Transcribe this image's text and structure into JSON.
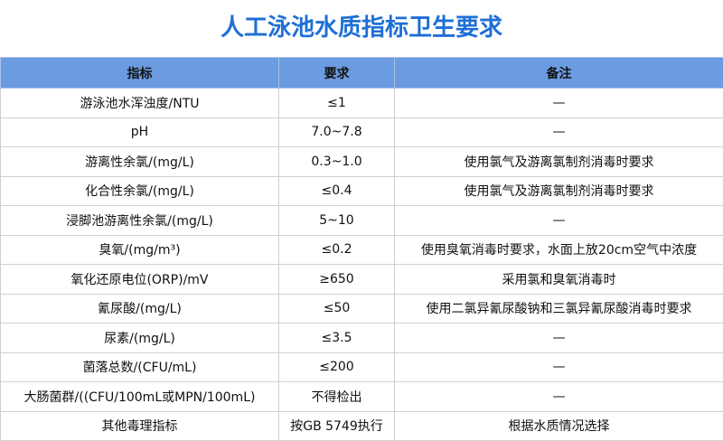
{
  "header": {
    "title": "人工泳池水质指标卫生要求"
  },
  "table": {
    "columns": [
      "指标",
      "要求",
      "备注"
    ],
    "rows": [
      [
        "游泳池水浑浊度/NTU",
        "≤1",
        "—"
      ],
      [
        "pH",
        "7.0~7.8",
        "—"
      ],
      [
        "游离性余氯/(mg/L)",
        "0.3~1.0",
        "使用氯气及游离氯制剂消毒时要求"
      ],
      [
        "化合性余氯/(mg/L)",
        "≤0.4",
        "使用氯气及游离氯制剂消毒时要求"
      ],
      [
        "浸脚池游离性余氯/(mg/L)",
        "5~10",
        "—"
      ],
      [
        "臭氧/(mg/m³)",
        "≤0.2",
        "使用臭氧消毒时要求，水面上放20cm空气中浓度"
      ],
      [
        "氧化还原电位(ORP)/mV",
        "≥650",
        "采用氯和臭氧消毒时"
      ],
      [
        "氰尿酸/(mg/L)",
        "≤50",
        "使用二氯异氰尿酸钠和三氯异氰尿酸消毒时要求"
      ],
      [
        "尿素/(mg/L)",
        "≤3.5",
        "—"
      ],
      [
        "菌落总数/(CFU/mL)",
        "≤200",
        "—"
      ],
      [
        "大肠菌群/((CFU/100mL或MPN/100mL)",
        "不得检出",
        "—"
      ],
      [
        "其他毒理指标",
        "按GB 5749执行",
        "根据水质情况选择"
      ]
    ]
  }
}
